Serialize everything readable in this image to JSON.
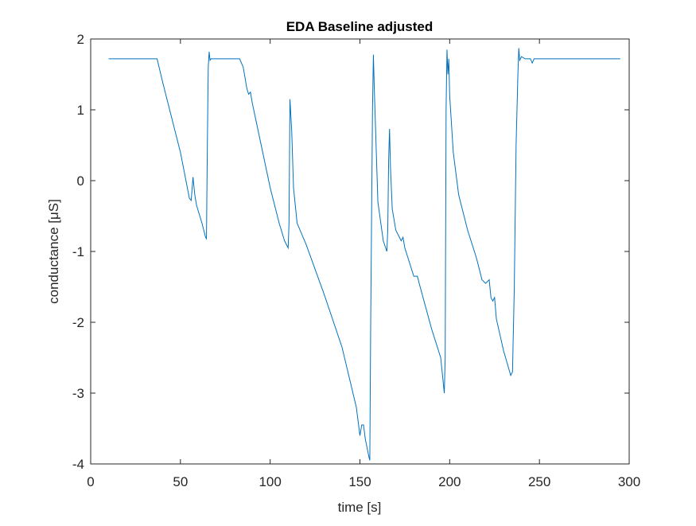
{
  "chart_data": {
    "type": "line",
    "title": "EDA Baseline adjusted",
    "xlabel": "time [s]",
    "ylabel": "conductance [μS]",
    "xlim": [
      0,
      300
    ],
    "ylim": [
      -4,
      2
    ],
    "xticks": [
      0,
      50,
      100,
      150,
      200,
      250,
      300
    ],
    "yticks": [
      -4,
      -3,
      -2,
      -1,
      0,
      1,
      2
    ],
    "series": [
      {
        "color": "#0072bd",
        "x": [
          10,
          37,
          40,
          45,
          50,
          55,
          56,
          57,
          58,
          59,
          62,
          64,
          64.5,
          65,
          65.5,
          66,
          66.5,
          67,
          83,
          85,
          87,
          88,
          89,
          90,
          95,
          100,
          105,
          108,
          110,
          110.5,
          111,
          112,
          113,
          115,
          120,
          130,
          140,
          148,
          150,
          151,
          152,
          153,
          155,
          155.5,
          156,
          157,
          157.5,
          158,
          160,
          163,
          165,
          165.5,
          166,
          166.5,
          167,
          168,
          170,
          173,
          174,
          175,
          180,
          182,
          183,
          190,
          195,
          196,
          197,
          197.5,
          198,
          198.5,
          199,
          199.5,
          200,
          202,
          205,
          210,
          215,
          218,
          220,
          222,
          223,
          224,
          225,
          226,
          230,
          234,
          235,
          236,
          237,
          238,
          238.5,
          239,
          240,
          242,
          245,
          246,
          247,
          295
        ],
        "values": [
          1.72,
          1.72,
          1.4,
          0.9,
          0.4,
          -0.25,
          -0.28,
          0.05,
          -0.2,
          -0.35,
          -0.6,
          -0.8,
          -0.82,
          0.5,
          1.6,
          1.82,
          1.7,
          1.72,
          1.72,
          1.6,
          1.3,
          1.22,
          1.25,
          1.1,
          0.5,
          -0.1,
          -0.6,
          -0.85,
          -0.95,
          -0.6,
          1.15,
          0.7,
          -0.1,
          -0.6,
          -0.9,
          -1.6,
          -2.35,
          -3.2,
          -3.6,
          -3.45,
          -3.45,
          -3.65,
          -3.9,
          -3.95,
          -2,
          1.0,
          1.78,
          1.3,
          -0.3,
          -0.85,
          -1.0,
          -0.7,
          0.3,
          0.73,
          0.2,
          -0.4,
          -0.7,
          -0.85,
          -0.8,
          -0.95,
          -1.35,
          -1.35,
          -1.45,
          -2.1,
          -2.5,
          -2.75,
          -3.0,
          -2.5,
          1.0,
          1.85,
          1.5,
          1.72,
          1.2,
          0.4,
          -0.2,
          -0.7,
          -1.1,
          -1.4,
          -1.45,
          -1.4,
          -1.65,
          -1.7,
          -1.65,
          -1.95,
          -2.4,
          -2.75,
          -2.7,
          -1.5,
          0.5,
          1.5,
          1.87,
          1.7,
          1.75,
          1.72,
          1.72,
          1.66,
          1.72,
          1.72
        ]
      }
    ]
  }
}
